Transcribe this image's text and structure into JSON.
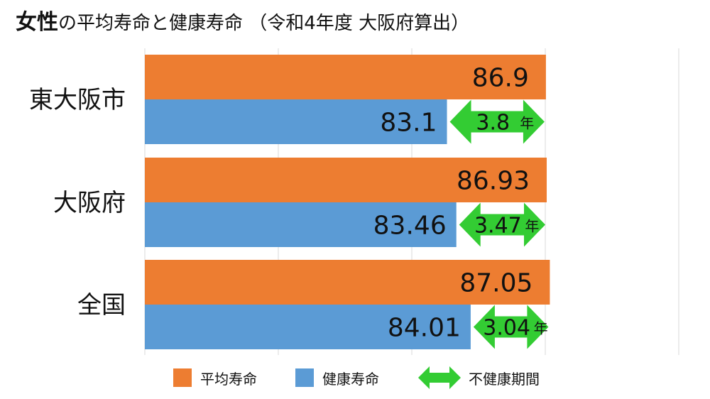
{
  "title": {
    "emphasis": "女性",
    "rest": "の平均寿命と健康寿命 （令和4年度 大阪府算出）"
  },
  "colors": {
    "life_expectancy": "#ED7D31",
    "healthy_life": "#5B9BD5",
    "unhealthy_period": "#33CC33"
  },
  "legend": [
    {
      "label": "平均寿命",
      "kind": "swatch",
      "color": "#ED7D31"
    },
    {
      "label": "健康寿命",
      "kind": "swatch",
      "color": "#5B9BD5"
    },
    {
      "label": "不健康期間",
      "kind": "arrow",
      "color": "#33CC33"
    }
  ],
  "chart_data": {
    "type": "bar",
    "orientation": "horizontal",
    "title": "女性の平均寿命と健康寿命 （令和4年度 大阪府算出）",
    "categories": [
      "東大阪市",
      "大阪府",
      "全国"
    ],
    "series": [
      {
        "name": "平均寿命",
        "values": [
          86.9,
          86.93,
          87.05
        ],
        "labels": [
          "86.9",
          "86.93",
          "87.05"
        ]
      },
      {
        "name": "健康寿命",
        "values": [
          83.1,
          83.46,
          84.01
        ],
        "labels": [
          "83.1",
          "83.46",
          "84.01"
        ]
      }
    ],
    "unhealthy_period": {
      "name": "不健康期間",
      "values": [
        3.8,
        3.47,
        3.04
      ],
      "labels": [
        "3.8",
        "3.47",
        "3.04"
      ],
      "unit": "年"
    },
    "xlim": [
      71.5,
      92
    ],
    "grid": true,
    "legend_position": "bottom"
  }
}
